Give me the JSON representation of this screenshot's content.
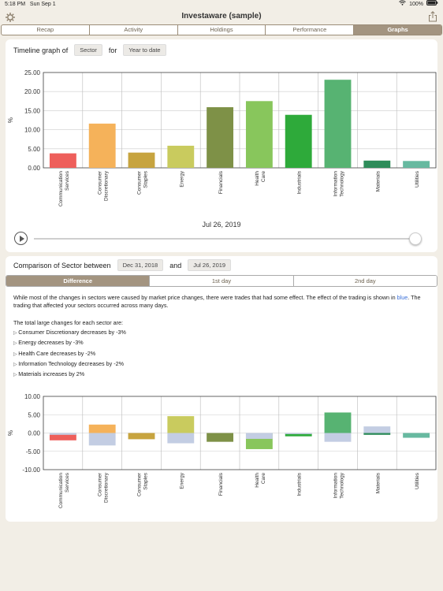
{
  "status": {
    "time": "5:18 PM",
    "date": "Sun Sep 1",
    "battery": "100%"
  },
  "app": {
    "title": "Investaware (sample)"
  },
  "tabs": [
    {
      "label": "Recap"
    },
    {
      "label": "Activity"
    },
    {
      "label": "Holdings"
    },
    {
      "label": "Performance"
    },
    {
      "label": "Graphs"
    }
  ],
  "timeline": {
    "prefix": "Timeline graph of",
    "group_by": "Sector",
    "for_label": "for",
    "period": "Year to date",
    "date": "Jul 26, 2019"
  },
  "comparison": {
    "prefix": "Comparison of Sector between",
    "date1": "Dec 31, 2018",
    "and_label": "and",
    "date2": "Jul 26, 2019",
    "segments": [
      "Difference",
      "1st day",
      "2nd day"
    ],
    "intro_a": "While most of the changes in sectors were caused by market price changes, there were trades that had some effect.  The effect of the trading is shown in",
    "intro_blue": "blue",
    "intro_b": ".  The trading that affected your sectors occurred across many days.",
    "changes_heading": "The total large changes for each sector are:",
    "changes": [
      "Consumer Discretionary decreases by -3%",
      "Energy decreases by -3%",
      "Health Care decreases by -2%",
      "Information Technology decreases by -2%",
      "Materials increases by 2%"
    ]
  },
  "chart_data": [
    {
      "type": "bar",
      "ylabel": "%",
      "ylim": [
        0,
        25
      ],
      "yticks": [
        "0.00",
        "5.00",
        "10.00",
        "15.00",
        "20.00",
        "25.00"
      ],
      "grid": true,
      "categories": [
        "Communication Services",
        "Consumer Discretionary",
        "Consumer Staples",
        "Energy",
        "Financials",
        "Health Care",
        "Industrials",
        "Information Technology",
        "Materials",
        "Utilities"
      ],
      "values": [
        3.8,
        11.6,
        4.0,
        5.8,
        15.9,
        17.5,
        13.9,
        23.1,
        1.9,
        1.8
      ],
      "colors": [
        "#ee5f5b",
        "#f5b25a",
        "#c7a43f",
        "#c9cb5e",
        "#7e9147",
        "#88c65c",
        "#2eaa3a",
        "#57b372",
        "#2e8c5a",
        "#67b9a0"
      ]
    },
    {
      "type": "bar",
      "ylabel": "%",
      "ylim": [
        -10,
        10
      ],
      "yticks": [
        "-10.00",
        "-5.00",
        "0.00",
        "5.00",
        "10.00"
      ],
      "grid": true,
      "categories": [
        "Communication Services",
        "Consumer Discretionary",
        "Consumer Staples",
        "Energy",
        "Financials",
        "Health Care",
        "Industrials",
        "Information Technology",
        "Materials",
        "Utilities"
      ],
      "series": [
        {
          "values": [
            -2.0,
            2.3,
            -1.7,
            4.6,
            -2.4,
            -4.4,
            -0.9,
            5.6,
            -0.5,
            -1.3
          ],
          "colors": [
            "#ee5f5b",
            "#f5b25a",
            "#c7a43f",
            "#c9cb5e",
            "#7e9147",
            "#88c65c",
            "#2eaa3a",
            "#57b372",
            "#2e8c5a",
            "#67b9a0"
          ]
        },
        {
          "values": [
            -0.5,
            -3.4,
            0,
            -2.8,
            0,
            -1.6,
            -0.3,
            -2.4,
            1.8,
            0
          ],
          "color": "#c3cde3"
        }
      ]
    }
  ]
}
